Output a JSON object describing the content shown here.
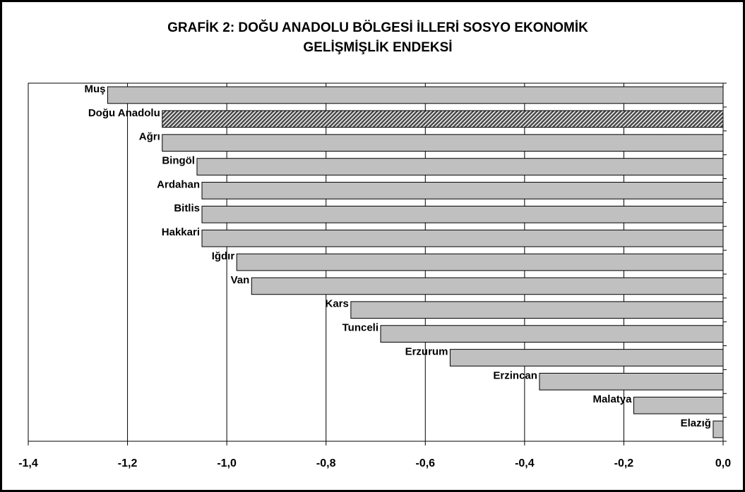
{
  "chart_data": {
    "type": "bar",
    "orientation": "horizontal",
    "title": [
      "GRAFİK 2: DOĞU ANADOLU BÖLGESİ İLLERİ SOSYO EKONOMİK",
      "GELİŞMİŞLİK ENDEKSİ"
    ],
    "categories": [
      "Muş",
      "Doğu Anadolu",
      "Ağrı",
      "Bingöl",
      "Ardahan",
      "Bitlis",
      "Hakkari",
      "Iğdır",
      "Van",
      "Kars",
      "Tunceli",
      "Erzurum",
      "Erzincan",
      "Malatya",
      "Elazığ"
    ],
    "values": [
      -1.24,
      -1.13,
      -1.13,
      -1.06,
      -1.05,
      -1.05,
      -1.05,
      -0.98,
      -0.95,
      -0.75,
      -0.69,
      -0.55,
      -0.37,
      -0.18,
      -0.02
    ],
    "color": "#c0c0c0",
    "hatched": [
      false,
      true,
      false,
      false,
      false,
      false,
      false,
      false,
      false,
      false,
      false,
      false,
      false,
      false,
      false
    ],
    "xlim": [
      -1.4,
      0
    ],
    "xticks": [
      {
        "value": -1.4,
        "label": "-1,4"
      },
      {
        "value": -1.2,
        "label": "-1,2"
      },
      {
        "value": -1.0,
        "label": "-1,0"
      },
      {
        "value": -0.8,
        "label": "-0,8"
      },
      {
        "value": -0.6,
        "label": "-0,6"
      },
      {
        "value": -0.4,
        "label": "-0,4"
      },
      {
        "value": -0.2,
        "label": "-0,2"
      },
      {
        "value": 0,
        "label": "0,0"
      }
    ],
    "grid": true
  }
}
